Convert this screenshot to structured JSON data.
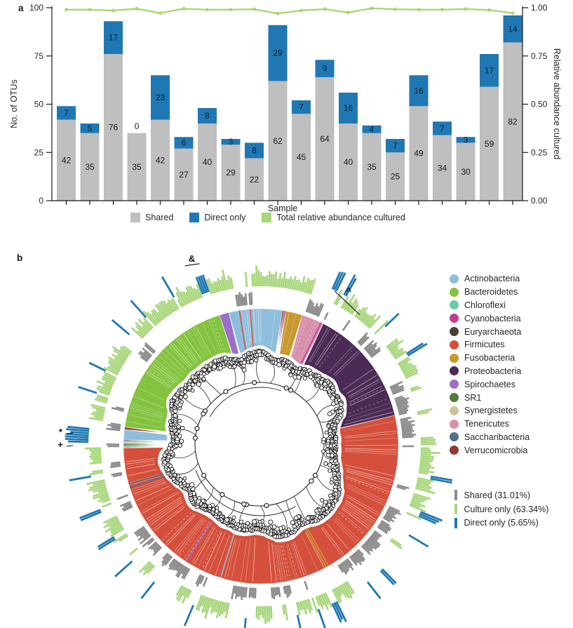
{
  "figure": {
    "panel_a_label": "a",
    "panel_b_label": "b",
    "background": "#ffffff"
  },
  "panel_a": {
    "ylabel_left": "No. of OTUs",
    "ylabel_right": "Relative abundance cultured",
    "xlabel": "Sample",
    "legend": [
      {
        "label": "Shared",
        "color": "#BFBFBF"
      },
      {
        "label": "Direct only",
        "color": "#1F78B4"
      },
      {
        "label": "Total relative abundance cultured",
        "color": "#A6D875"
      }
    ]
  },
  "panel_b": {
    "phyla": [
      {
        "name": "Actinobacteria",
        "color": "#8FBEDC"
      },
      {
        "name": "Bacteroidetes",
        "color": "#84C33F"
      },
      {
        "name": "Chloroflexi",
        "color": "#6BCBA4"
      },
      {
        "name": "Cyanobacteria",
        "color": "#C43C97"
      },
      {
        "name": "Euryarchaeota",
        "color": "#474036"
      },
      {
        "name": "Firmicutes",
        "color": "#D5503C"
      },
      {
        "name": "Fusobacteria",
        "color": "#C8992F"
      },
      {
        "name": "Proteobacteria",
        "color": "#4B2B55"
      },
      {
        "name": "Spirochaetes",
        "color": "#9A6FC9"
      },
      {
        "name": "SR1",
        "color": "#4F7A38"
      },
      {
        "name": "Synergistetes",
        "color": "#CEC49A"
      },
      {
        "name": "Tenericutes",
        "color": "#D791AC"
      },
      {
        "name": "Saccharibacteria",
        "color": "#50708C"
      },
      {
        "name": "Verrucomicrobia",
        "color": "#94382F"
      }
    ],
    "ring_legend": [
      {
        "label": "Shared (31.01%)",
        "color": "#8E8E8E"
      },
      {
        "label": "Culture only (63.34%)",
        "color": "#A9D77E"
      },
      {
        "label": "Direct only (5.65%)",
        "color": "#1F78B4"
      }
    ]
  },
  "chart_data": [
    {
      "type": "bar",
      "stacked": true,
      "n_samples": 20,
      "title": "",
      "xlabel": "Sample",
      "ylabel_left": "No. of OTUs",
      "ylabel_right": "Relative abundance cultured",
      "ylim_left": [
        0,
        100
      ],
      "yticks_left": [
        0,
        25,
        50,
        75,
        100
      ],
      "ylim_right": [
        0,
        1
      ],
      "yticks_right": [
        "0.00",
        "0.25",
        "0.50",
        "0.75",
        "1.00"
      ],
      "grid": false,
      "legend_position": "bottom",
      "series": [
        {
          "name": "Shared",
          "color": "#BFBFBF",
          "values": [
            42,
            35,
            76,
            35,
            42,
            27,
            40,
            29,
            22,
            62,
            45,
            64,
            40,
            35,
            25,
            49,
            34,
            30,
            59,
            82
          ]
        },
        {
          "name": "Direct only",
          "color": "#1F78B4",
          "values": [
            7,
            5,
            17,
            0,
            23,
            6,
            8,
            3,
            8,
            29,
            7,
            9,
            16,
            4,
            7,
            16,
            7,
            3,
            17,
            14
          ]
        }
      ],
      "line_series": {
        "name": "Total relative abundance cultured",
        "color": "#A6D875",
        "axis": "right",
        "values": [
          0.99,
          0.99,
          0.985,
          0.995,
          0.972,
          0.995,
          0.99,
          0.99,
          0.992,
          0.97,
          0.985,
          0.993,
          0.975,
          0.997,
          0.992,
          0.99,
          0.99,
          0.993,
          0.988,
          0.972
        ]
      }
    },
    {
      "type": "circular-phylogenetic-tree",
      "ring_distribution": {
        "shared": 0.31,
        "culture_only": 0.6334,
        "direct_only": 0.0565
      },
      "phylum_segments": [
        {
          "phylum": "Actinobacteria",
          "start_deg": 346.5,
          "end_deg": 369.0
        },
        {
          "phylum": "Euryarchaeota",
          "start_deg": 9.0,
          "end_deg": 9.6
        },
        {
          "phylum": "Cyanobacteria",
          "start_deg": 9.6,
          "end_deg": 10.4
        },
        {
          "phylum": "Fusobacteria",
          "start_deg": 10.4,
          "end_deg": 17.5
        },
        {
          "phylum": "Tenericutes",
          "start_deg": 17.5,
          "end_deg": 27.0
        },
        {
          "phylum": "Proteobacteria",
          "start_deg": 27.0,
          "end_deg": 77.0
        },
        {
          "phylum": "Firmicutes",
          "start_deg": 77.0,
          "end_deg": 269.3
        },
        {
          "phylum": "Chloroflexi",
          "start_deg": 269.3,
          "end_deg": 270.0
        },
        {
          "phylum": "SR1",
          "start_deg": 270.0,
          "end_deg": 270.6
        },
        {
          "phylum": "Euryarchaeota",
          "start_deg": 270.6,
          "end_deg": 271.2
        },
        {
          "phylum": "Synergistetes",
          "start_deg": 271.2,
          "end_deg": 272.0
        },
        {
          "phylum": "Saccharibacteria",
          "start_deg": 272.0,
          "end_deg": 272.6
        },
        {
          "phylum": "Actinobacteria",
          "start_deg": 272.6,
          "end_deg": 277.0
        },
        {
          "phylum": "Verrucomicrobia",
          "start_deg": 277.0,
          "end_deg": 278.0
        },
        {
          "phylum": "Bacteroidetes",
          "start_deg": 278.0,
          "end_deg": 342.5
        },
        {
          "phylum": "Spirochaetes",
          "start_deg": 342.5,
          "end_deg": 346.5
        }
      ],
      "slivers": [
        {
          "angle_deg": 351.0,
          "phylum": "Firmicutes"
        },
        {
          "angle_deg": 355.5,
          "phylum": "Firmicutes"
        },
        {
          "angle_deg": 150.5,
          "phylum": "Fusobacteria"
        },
        {
          "angle_deg": 151.7,
          "phylum": "Fusobacteria"
        },
        {
          "angle_deg": 197.0,
          "phylum": "Actinobacteria"
        },
        {
          "angle_deg": 213.0,
          "phylum": "Spirochaetes"
        },
        {
          "angle_deg": 252.5,
          "phylum": "Saccharibacteria"
        },
        {
          "angle_deg": 254.2,
          "phylum": "Saccharibacteria"
        },
        {
          "angle_deg": 26.0,
          "phylum": "Cyanobacteria"
        }
      ],
      "direct_tick_angles": [
        24.2,
        25.0,
        25.8,
        28.6,
        29.4,
        339.0,
        339.8,
        340.6,
        341.4,
        271.8,
        272.6,
        273.4,
        274.6,
        275.4,
        46.0,
        58.0,
        100.4,
        112.6,
        113.4,
        135.2,
        136.0,
        154.4,
        155.2,
        168.0,
        185.0,
        203.0,
        228.4,
        238.0,
        248.0,
        296.0,
        310.5,
        318.0,
        329.5,
        120.7,
        142.0,
        160.5,
        218.0,
        260.0,
        288.0
      ],
      "annotations": [
        {
          "symbol": "&",
          "angle_deg": 339.5,
          "radius": 281
        },
        {
          "symbol": "^",
          "angle_deg": 30.0,
          "radius": 250
        },
        {
          "symbol": "*",
          "angle_deg": 273.2,
          "radius": 286
        },
        {
          "symbol": "+",
          "angle_deg": 269.6,
          "radius": 286
        }
      ]
    }
  ]
}
